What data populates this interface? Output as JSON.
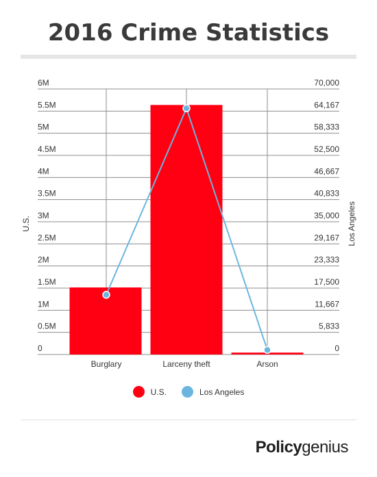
{
  "title": "2016 Crime Statistics",
  "chart_data": {
    "type": "bar",
    "categories": [
      "Burglary",
      "Larceny theft",
      "Arson"
    ],
    "series": [
      {
        "name": "U.S.",
        "type": "bar",
        "axis": "left",
        "color": "#ff0012",
        "values": [
          1515096,
          5638455,
          42934
        ]
      },
      {
        "name": "Los Angeles",
        "type": "line",
        "axis": "right",
        "color": "#6bb6df",
        "values": [
          15736,
          64900,
          1200
        ]
      }
    ],
    "ylabel_left": "U.S.",
    "ylabel_right": "Los Angeles",
    "ylim_left": [
      0,
      6000000
    ],
    "ylim_right": [
      0,
      70000
    ],
    "yticks_left": [
      "0",
      "0.5M",
      "1M",
      "1.5M",
      "2M",
      "2.5M",
      "3M",
      "3.5M",
      "4M",
      "4.5M",
      "5M",
      "5.5M",
      "6M"
    ],
    "yticks_right": [
      "0",
      "5,833",
      "11,667",
      "17,500",
      "23,333",
      "29,167",
      "35,000",
      "40,833",
      "46,667",
      "52,500",
      "58,333",
      "64,167",
      "70,000"
    ],
    "grid": true,
    "legend_position": "bottom"
  },
  "legend": [
    {
      "label": "U.S.",
      "color": "#ff0012"
    },
    {
      "label": "Los Angeles",
      "color": "#6bb6df"
    }
  ],
  "brand": {
    "bold": "Policy",
    "regular": "genius"
  }
}
